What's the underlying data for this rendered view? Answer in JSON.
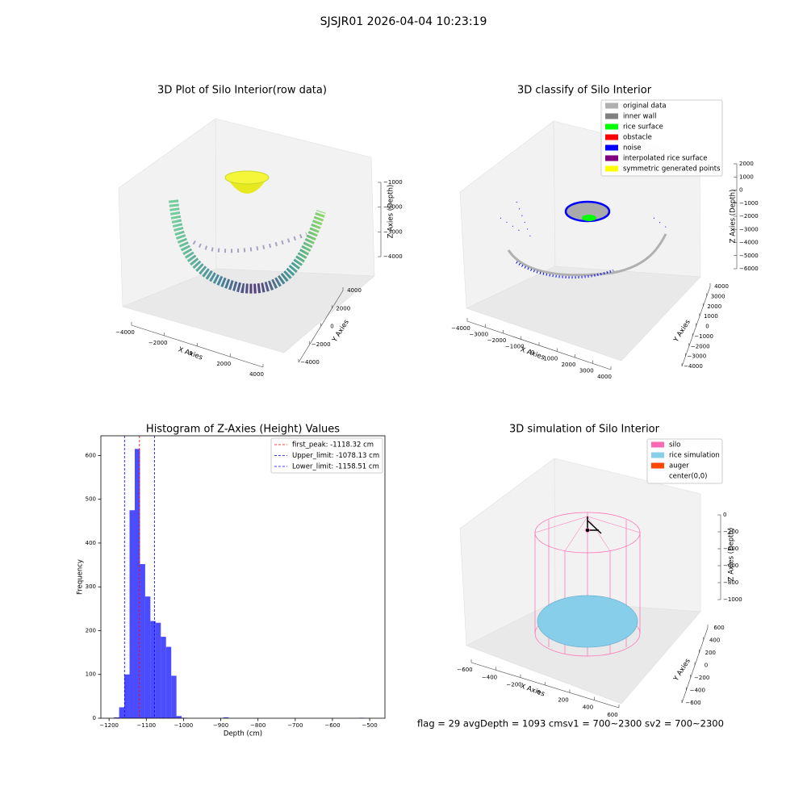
{
  "title": "SJSJR01 2026-04-04 10:23:19",
  "footer": "flag = 29  avgDepth = 1093 cmsv1 = 700~2300  sv2 = 700~2300",
  "chart_data": [
    {
      "type": "scatter3d",
      "title": "3D Plot of Silo Interior(row data)",
      "xlabel": "X Axies",
      "ylabel": "Y Axies",
      "zlabel": "Z Axies (Depth)",
      "xlim": [
        -4000,
        4000
      ],
      "ylim": [
        -4000,
        4000
      ],
      "zlim": [
        -1000,
        -4000
      ],
      "xticks": [
        {
          "value": -4000,
          "label": "−4000"
        },
        {
          "value": -2000,
          "label": "−2000"
        },
        0,
        2000,
        4000
      ],
      "yticks": [
        {
          "value": -4000,
          "label": "−4000"
        },
        {
          "value": -2000,
          "label": "−2000"
        },
        0,
        2000,
        4000
      ],
      "zticks": [
        {
          "value": -1000,
          "label": "−1000"
        },
        {
          "value": -2000,
          "label": "−2000"
        },
        {
          "value": -3000,
          "label": "−3000"
        },
        {
          "value": -4000,
          "label": "−4000"
        }
      ]
    },
    {
      "type": "scatter3d",
      "title": "3D classify of Silo Interior",
      "xlabel": "X Axies",
      "ylabel": "Y Axies",
      "zlabel": "Z Axies (Depth)",
      "xlim": [
        -4000,
        4000
      ],
      "ylim": [
        -4000,
        4000
      ],
      "zlim": [
        2000,
        -6000
      ],
      "xticks": [
        {
          "value": -4000,
          "label": "−4000"
        },
        {
          "value": -3000,
          "label": "−3000"
        },
        {
          "value": -2000,
          "label": "−2000"
        },
        {
          "value": -1000,
          "label": "−1000"
        },
        0,
        1000,
        2000,
        3000,
        4000
      ],
      "yticks": [
        {
          "value": -4000,
          "label": "−4000"
        },
        {
          "value": -3000,
          "label": "−3000"
        },
        {
          "value": -2000,
          "label": "−2000"
        },
        {
          "value": -1000,
          "label": "−1000"
        },
        0,
        1000,
        2000,
        3000,
        4000
      ],
      "zticks": [
        2000,
        1000,
        0,
        {
          "value": -1000,
          "label": "−1000"
        },
        {
          "value": -2000,
          "label": "−2000"
        },
        {
          "value": -3000,
          "label": "−3000"
        },
        {
          "value": -4000,
          "label": "−4000"
        },
        {
          "value": -5000,
          "label": "−5000"
        },
        {
          "value": -6000,
          "label": "−6000"
        }
      ],
      "legend_items": [
        {
          "name": "original data",
          "color": "#b0b0b0"
        },
        {
          "name": "inner wall",
          "color": "#808080"
        },
        {
          "name": "rice surface",
          "color": "#00ff00"
        },
        {
          "name": "obstacle",
          "color": "#ff0000"
        },
        {
          "name": "noise",
          "color": "#0000ff"
        },
        {
          "name": "interpolated rice surface",
          "color": "#800080"
        },
        {
          "name": "symmetric generated points",
          "color": "#ffff00"
        }
      ]
    },
    {
      "type": "histogram",
      "title": "Histogram of Z-Axies (Height) Values",
      "xlabel": "Depth (cm)",
      "ylabel": "Frequency",
      "color": "#0000ff",
      "bins": [
        -1187,
        -1173,
        -1159,
        -1145,
        -1131,
        -1117,
        -1103,
        -1089,
        -1075,
        -1061,
        -1047,
        -1033,
        -1019,
        -1005,
        -991,
        -977,
        -963,
        -949,
        -935,
        -921,
        -907,
        -893,
        -879,
        -865,
        -851,
        -837,
        -823,
        -809,
        -795,
        -781,
        -767,
        -753,
        -739,
        -725,
        -711,
        -697,
        -683,
        -669,
        -655,
        -641,
        -627,
        -613,
        -599,
        -585,
        -571,
        -557,
        -543,
        -529,
        -515
      ],
      "values": [
        2,
        25,
        100,
        475,
        615,
        352,
        278,
        222,
        218,
        186,
        163,
        97,
        5,
        1,
        0,
        0,
        0,
        0,
        0,
        0,
        0,
        2,
        0,
        0,
        0,
        0,
        0,
        0,
        0,
        0,
        0,
        0,
        0,
        0,
        0,
        0,
        0,
        0,
        0,
        0,
        0,
        0,
        0,
        0,
        0,
        0,
        0,
        1
      ],
      "xlim": [
        -1222,
        -459
      ],
      "ylim": [
        0,
        645
      ],
      "xticks": [
        {
          "value": -1200,
          "label": "−1200"
        },
        {
          "value": -1100,
          "label": "−1100"
        },
        {
          "value": -1000,
          "label": "−1000"
        },
        {
          "value": -900,
          "label": "−900"
        },
        {
          "value": -800,
          "label": "−800"
        },
        {
          "value": -700,
          "label": "−700"
        },
        {
          "value": -600,
          "label": "−600"
        },
        {
          "value": -500,
          "label": "−500"
        }
      ],
      "yticks": [
        0,
        100,
        200,
        300,
        400,
        500,
        600
      ],
      "vlines": [
        {
          "name": "first_peak: -1118.32 cm",
          "value": -1118.32,
          "color": "#ff0000"
        },
        {
          "name": "Upper_limit: -1078.13 cm",
          "value": -1078.13,
          "color": "#0000ff"
        },
        {
          "name": "Lower_limit: -1158.51 cm",
          "value": -1158.51,
          "color": "#0000ff"
        }
      ]
    },
    {
      "type": "wireframe3d",
      "title": "3D simulation of Silo Interior",
      "xlabel": "X Axies",
      "ylabel": "Y Axies",
      "zlabel": "Z Axies (Depth)",
      "xlim": [
        -600,
        600
      ],
      "ylim": [
        -600,
        600
      ],
      "zlim": [
        0,
        -1000
      ],
      "xticks": [
        {
          "value": -600,
          "label": "−600"
        },
        {
          "value": -400,
          "label": "−400"
        },
        {
          "value": -200,
          "label": "−200"
        },
        0,
        200,
        400,
        600
      ],
      "yticks": [
        {
          "value": -600,
          "label": "−600"
        },
        {
          "value": -400,
          "label": "−400"
        },
        {
          "value": -200,
          "label": "−200"
        },
        0,
        200,
        400,
        600
      ],
      "zticks": [
        0,
        {
          "value": -200,
          "label": "−200"
        },
        {
          "value": -400,
          "label": "−400"
        },
        {
          "value": -600,
          "label": "−600"
        },
        {
          "value": -800,
          "label": "−800"
        },
        {
          "value": -1000,
          "label": "−1000"
        }
      ],
      "legend_items": [
        {
          "name": "silo",
          "color": "#ff69b4"
        },
        {
          "name": "rice simulation",
          "color": "#87ceeb"
        },
        {
          "name": "auger",
          "color": "#ff4500"
        },
        {
          "name": "center(0,0)"
        }
      ]
    }
  ]
}
